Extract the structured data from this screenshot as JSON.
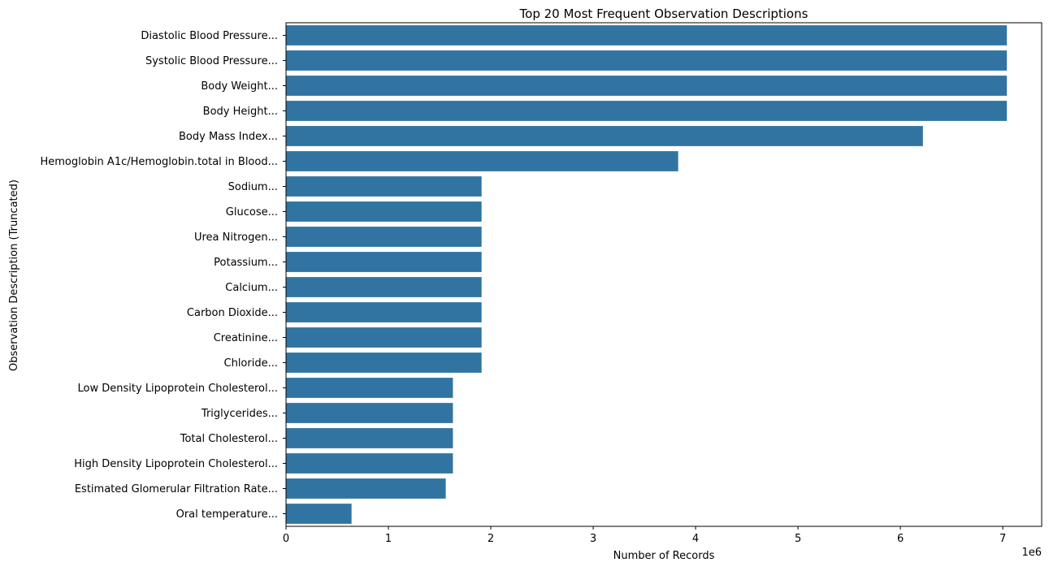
{
  "chart_data": {
    "type": "bar",
    "orientation": "horizontal",
    "title": "Top 20 Most Frequent Observation Descriptions",
    "xlabel": "Number of Records",
    "ylabel": "Observation Description (Truncated)",
    "x_offset_label": "1e6",
    "x_scale": 1000000,
    "xlim": [
      0,
      7.38
    ],
    "xticks": [
      0,
      1,
      2,
      3,
      4,
      5,
      6,
      7
    ],
    "xtick_labels": [
      "0",
      "1",
      "2",
      "3",
      "4",
      "5",
      "6",
      "7"
    ],
    "grid": false,
    "bar_color": "#3274a1",
    "categories": [
      "Diastolic Blood Pressure...",
      "Systolic Blood Pressure...",
      "Body Weight...",
      "Body Height...",
      "Body Mass Index...",
      "Hemoglobin A1c/Hemoglobin.total in Blood...",
      "Sodium...",
      "Glucose...",
      "Urea Nitrogen...",
      "Potassium...",
      "Calcium...",
      "Carbon Dioxide...",
      "Creatinine...",
      "Chloride...",
      "Low Density Lipoprotein Cholesterol...",
      "Triglycerides...",
      "Total Cholesterol...",
      "High Density Lipoprotein Cholesterol...",
      "Estimated Glomerular Filtration Rate...",
      "Oral temperature..."
    ],
    "values": [
      7040000,
      7040000,
      7040000,
      7040000,
      6220000,
      3830000,
      1910000,
      1910000,
      1910000,
      1910000,
      1910000,
      1910000,
      1910000,
      1910000,
      1630000,
      1630000,
      1630000,
      1630000,
      1560000,
      640000
    ]
  }
}
